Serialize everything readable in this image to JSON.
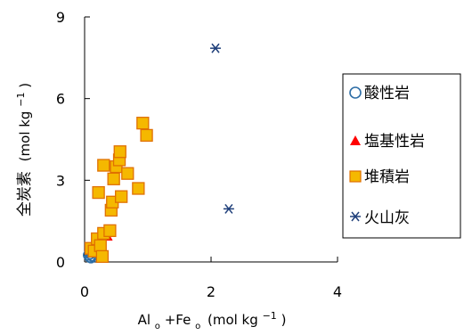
{
  "chart_data": {
    "type": "scatter",
    "xlabel": {
      "main": "Al",
      "sub1": "o",
      "mid": "+Fe",
      "sub2": "o",
      "unit": "(mol kg",
      "sup": "−1",
      "close": ")"
    },
    "ylabel": {
      "main": "全炭素",
      "unit": "(mol kg",
      "sup": "−1",
      "close": ")"
    },
    "xlim": [
      0,
      4
    ],
    "ylim": [
      0,
      9
    ],
    "xticks": [
      0,
      2,
      4
    ],
    "yticks": [
      0,
      3,
      6,
      9
    ],
    "grid": false,
    "legend": {
      "placement": "right"
    },
    "series": [
      {
        "name": "酸性岩",
        "marker": "circle",
        "color": "#2e6ea6",
        "points": [
          [
            0.06,
            0.25
          ],
          [
            0.08,
            0.18
          ],
          [
            0.09,
            0.3
          ],
          [
            0.1,
            0.15
          ],
          [
            0.12,
            0.22
          ]
        ]
      },
      {
        "name": "塩基性岩",
        "marker": "triangle",
        "color": "#ff0000",
        "points": [
          [
            0.36,
            0.95
          ]
        ]
      },
      {
        "name": "堆積岩",
        "marker": "square",
        "color": "#f5b800",
        "edge": "#e07000",
        "points": [
          [
            0.1,
            0.5
          ],
          [
            0.15,
            0.4
          ],
          [
            0.2,
            0.85
          ],
          [
            0.25,
            0.6
          ],
          [
            0.28,
            0.2
          ],
          [
            0.3,
            1.05
          ],
          [
            0.22,
            2.55
          ],
          [
            0.3,
            3.55
          ],
          [
            0.4,
            1.15
          ],
          [
            0.42,
            1.9
          ],
          [
            0.44,
            2.2
          ],
          [
            0.46,
            3.05
          ],
          [
            0.5,
            3.5
          ],
          [
            0.55,
            3.75
          ],
          [
            0.56,
            4.05
          ],
          [
            0.58,
            2.4
          ],
          [
            0.68,
            3.25
          ],
          [
            0.85,
            2.7
          ],
          [
            0.92,
            5.1
          ],
          [
            0.98,
            4.65
          ]
        ]
      },
      {
        "name": "火山灰",
        "marker": "asterisk",
        "color": "#1f3f7a",
        "points": [
          [
            2.07,
            7.85
          ],
          [
            2.28,
            1.95
          ]
        ]
      }
    ]
  }
}
